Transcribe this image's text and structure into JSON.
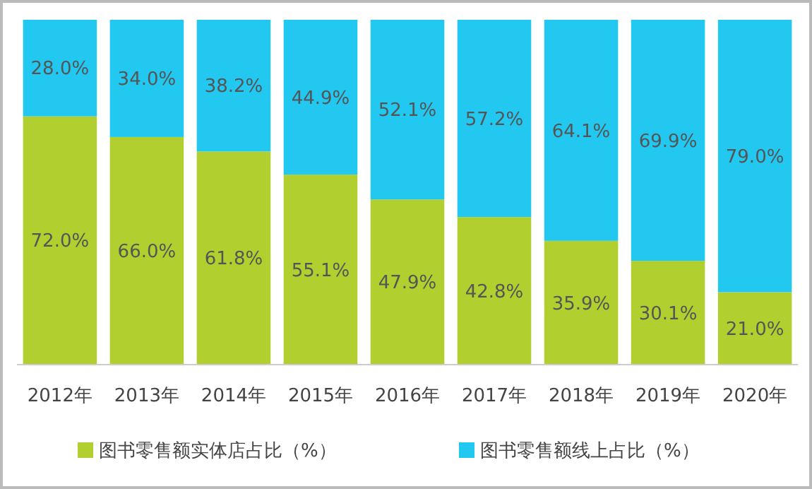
{
  "chart_data": {
    "type": "bar",
    "stacked": true,
    "legend": "bottom",
    "grid": false,
    "categories": [
      "2012年",
      "2013年",
      "2014年",
      "2015年",
      "2016年",
      "2017年",
      "2018年",
      "2019年",
      "2020年"
    ],
    "series": [
      {
        "name": "图书零售额实体店占比（%）",
        "color": "#b2cf30",
        "values": [
          72.0,
          66.0,
          61.8,
          55.1,
          47.9,
          42.8,
          35.9,
          30.1,
          21.0
        ],
        "value_labels": [
          "72.0%",
          "66.0%",
          "61.8%",
          "55.1%",
          "47.9%",
          "42.8%",
          "35.9%",
          "30.1%",
          "21.0%"
        ]
      },
      {
        "name": "图书零售额线上占比（%）",
        "color": "#22c8f0",
        "values": [
          28.0,
          34.0,
          38.2,
          44.9,
          52.1,
          57.2,
          64.1,
          69.9,
          79.0
        ],
        "value_labels": [
          "28.0%",
          "34.0%",
          "38.2%",
          "44.9%",
          "52.1%",
          "57.2%",
          "64.1%",
          "69.9%",
          "79.0%"
        ]
      }
    ]
  }
}
